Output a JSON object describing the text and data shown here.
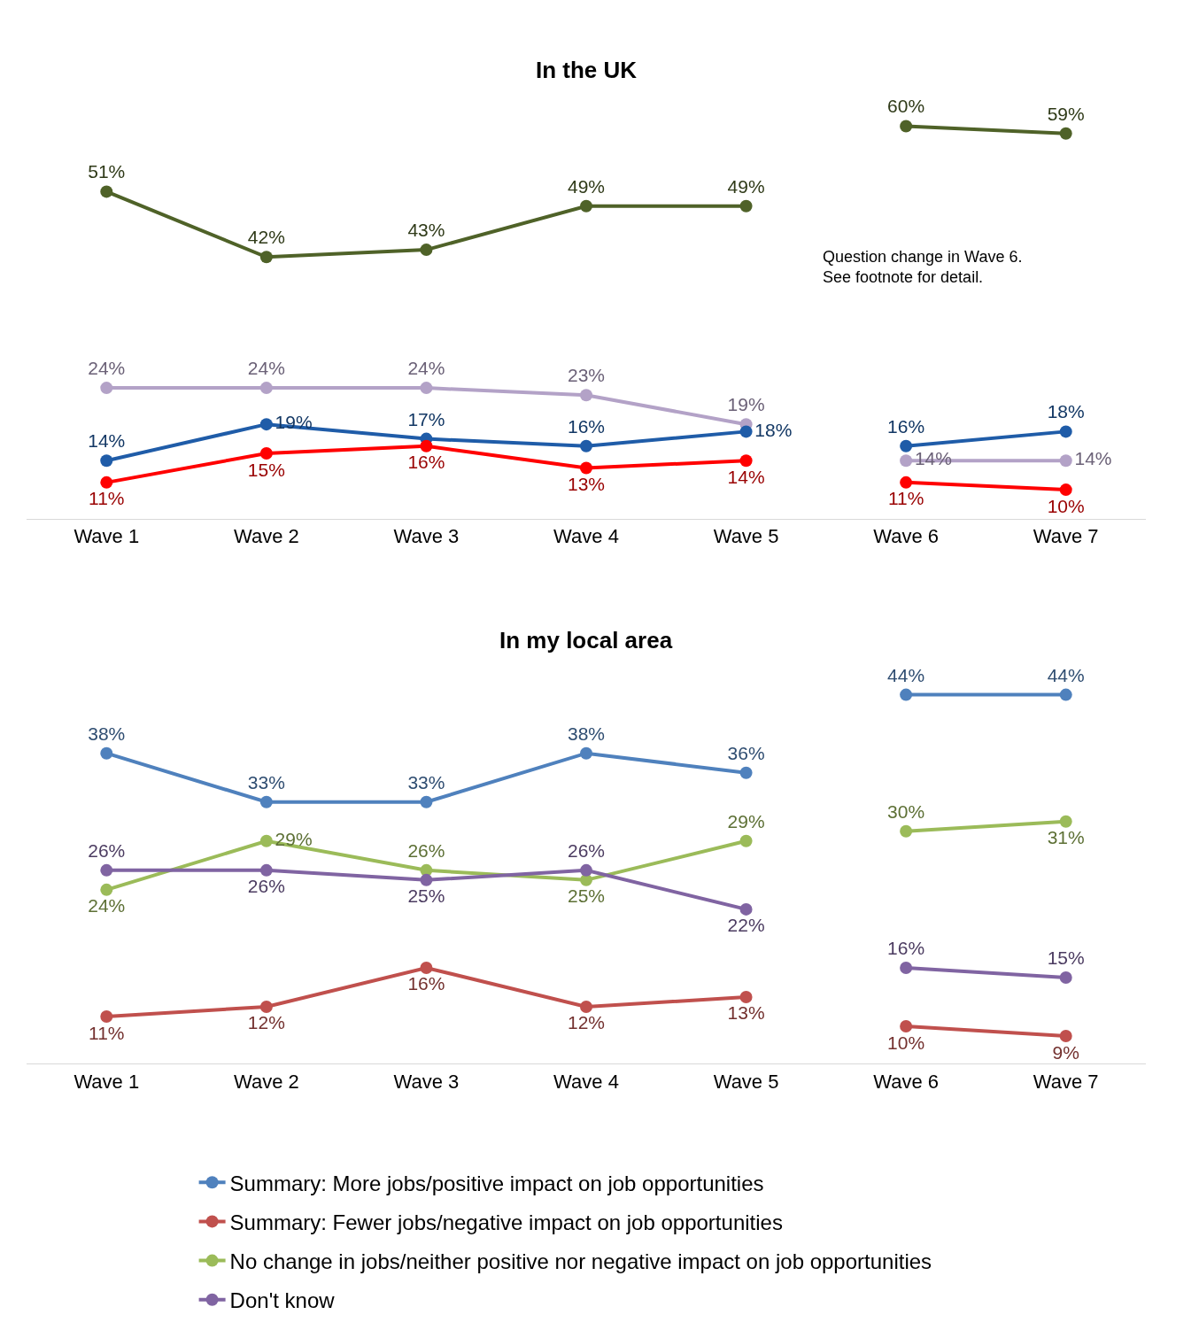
{
  "chart_data": [
    {
      "type": "line",
      "title": "In the UK",
      "categories": [
        "Wave 1",
        "Wave 2",
        "Wave 3",
        "Wave 4",
        "Wave 5",
        "Wave 6",
        "Wave 7"
      ],
      "series": [
        {
          "color": "#4f6228",
          "values": [
            51,
            42,
            43,
            49,
            49,
            60,
            59
          ],
          "value_labels": [
            "51%",
            "42%",
            "43%",
            "49%",
            "49%",
            "60%",
            "59%"
          ]
        },
        {
          "color": "#b3a2c7",
          "values": [
            24,
            24,
            24,
            23,
            19,
            14,
            14
          ],
          "value_labels": [
            "24%",
            "24%",
            "24%",
            "23%",
            "19%",
            "14%",
            "14%"
          ]
        },
        {
          "color": "#1f5ca8",
          "values": [
            14,
            19,
            17,
            16,
            18,
            16,
            18
          ],
          "value_labels": [
            "14%",
            "19%",
            "17%",
            "16%",
            "18%",
            "16%",
            "18%"
          ]
        },
        {
          "color": "#ff0000",
          "values": [
            11,
            15,
            16,
            13,
            14,
            11,
            10
          ],
          "value_labels": [
            "11%",
            "15%",
            "16%",
            "13%",
            "14%",
            "11%",
            "10%"
          ]
        }
      ],
      "legend": false,
      "marker": "circle",
      "line_style": "solid",
      "annotations": [
        "Question change in Wave 6.\nSee footnote for detail."
      ]
    },
    {
      "type": "line",
      "title": "In my local area",
      "categories": [
        "Wave 1",
        "Wave 2",
        "Wave 3",
        "Wave 4",
        "Wave 5",
        "Wave 6",
        "Wave 7"
      ],
      "series": [
        {
          "name": "Summary: More jobs/positive impact on job opportunities",
          "color": "#4f81bd",
          "values": [
            38,
            33,
            33,
            38,
            36,
            44,
            44
          ],
          "value_labels": [
            "38%",
            "33%",
            "33%",
            "38%",
            "36%",
            "44%",
            "44%"
          ]
        },
        {
          "name": "Summary: Fewer jobs/negative impact on job opportunities",
          "color": "#c0504d",
          "values": [
            11,
            12,
            16,
            12,
            13,
            10,
            9
          ],
          "value_labels": [
            "11%",
            "12%",
            "16%",
            "12%",
            "13%",
            "10%",
            "9%"
          ]
        },
        {
          "name": "No change in jobs/neither positive nor negative impact on job opportunities",
          "color": "#9bbb59",
          "values": [
            24,
            29,
            26,
            25,
            29,
            30,
            31
          ],
          "value_labels": [
            "24%",
            "29%",
            "26%",
            "25%",
            "29%",
            "30%",
            "31%"
          ]
        },
        {
          "name": "Don't know",
          "color": "#8064a2",
          "values": [
            26,
            26,
            25,
            26,
            22,
            16,
            15
          ],
          "value_labels": [
            "26%",
            "26%",
            "25%",
            "26%",
            "22%",
            "16%",
            "15%"
          ]
        }
      ],
      "legend": "bottom",
      "marker": "circle",
      "line_style": "solid"
    }
  ]
}
